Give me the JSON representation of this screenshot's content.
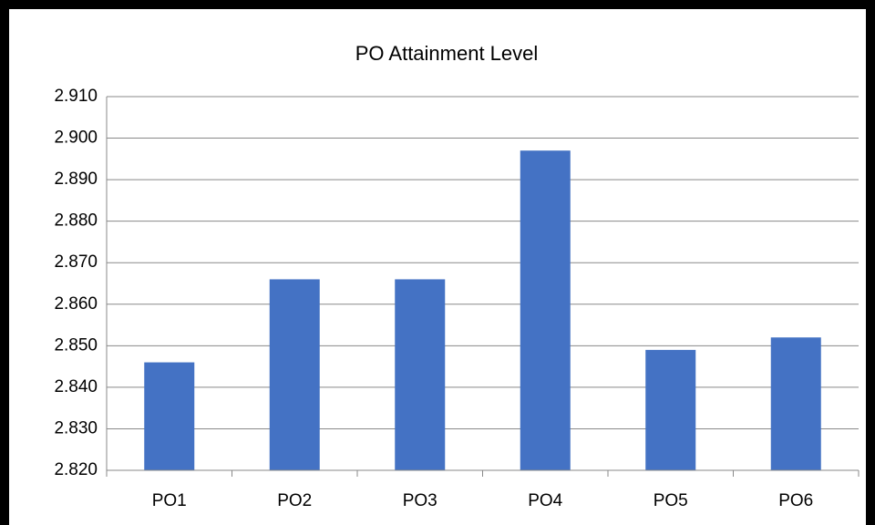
{
  "chart_data": {
    "type": "bar",
    "title": "PO Attainment Level",
    "categories": [
      "PO1",
      "PO2",
      "PO3",
      "PO4",
      "PO5",
      "PO6"
    ],
    "values": [
      2.846,
      2.866,
      2.866,
      2.897,
      2.849,
      2.852
    ],
    "color": "#4472c4",
    "ylim": [
      2.82,
      2.91
    ],
    "yticks": [
      {
        "value": 2.82,
        "label": "2.820"
      },
      {
        "value": 2.83,
        "label": "2.830"
      },
      {
        "value": 2.84,
        "label": "2.840"
      },
      {
        "value": 2.85,
        "label": "2.850"
      },
      {
        "value": 2.86,
        "label": "2.860"
      },
      {
        "value": 2.87,
        "label": "2.870"
      },
      {
        "value": 2.88,
        "label": "2.880"
      },
      {
        "value": 2.89,
        "label": "2.890"
      },
      {
        "value": 2.9,
        "label": "2.900"
      },
      {
        "value": 2.91,
        "label": "2.910"
      }
    ],
    "grid": true
  }
}
